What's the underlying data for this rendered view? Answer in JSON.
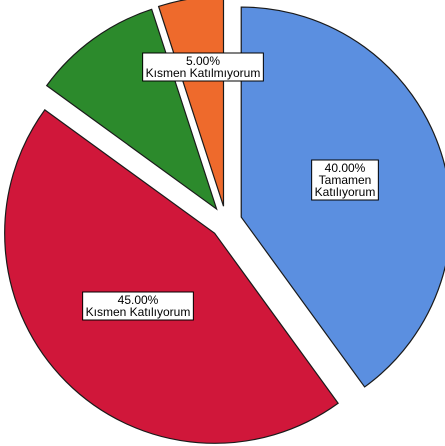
{
  "chart_data": {
    "type": "pie",
    "exploded": true,
    "start_angle_deg": 0,
    "direction": "clockwise",
    "slices": [
      {
        "value": 40,
        "label_pct": "40.00%",
        "label_lines": [
          "Tamamen",
          "Katılıyorum"
        ],
        "color": "#5b8fe0"
      },
      {
        "value": 45,
        "label_pct": "45.00%",
        "label_lines": [
          "Kısmen Katılıyorum"
        ],
        "color": "#d0173a"
      },
      {
        "value": 10,
        "label_pct": "",
        "label_lines": [],
        "color": "#2c8a2c"
      },
      {
        "value": 5,
        "label_pct": "5.00%",
        "label_lines": [
          "Kısmen Katılmıyorum"
        ],
        "color": "#ee6a2c"
      }
    ],
    "legend": "none"
  }
}
